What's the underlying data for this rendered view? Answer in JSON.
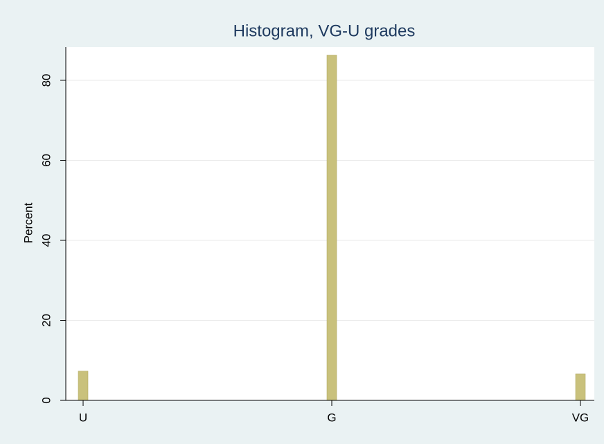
{
  "chart_data": {
    "type": "bar",
    "title": "Histogram, VG-U grades",
    "y_label": "Percent",
    "categories": [
      "U",
      "G",
      "VG"
    ],
    "values": [
      7.3,
      86.3,
      6.6
    ],
    "color": "#c9c17c",
    "ylim": [
      0,
      88.3
    ],
    "yticks": [
      0,
      20,
      40,
      60,
      80
    ],
    "grid": true
  }
}
